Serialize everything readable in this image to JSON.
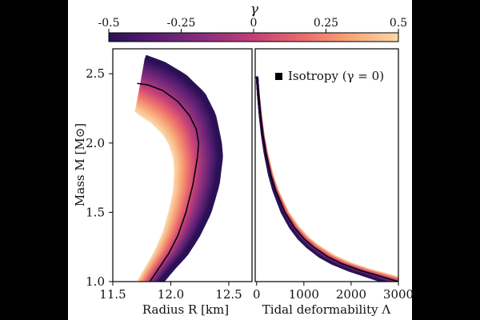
{
  "colorbar": {
    "label": "γ",
    "ticks": [
      "-0.5",
      "-0.25",
      "0",
      "0.25",
      "0.5"
    ],
    "tick_values": [
      -0.5,
      -0.25,
      0,
      0.25,
      0.5
    ],
    "gradient": [
      "#2a1156",
      "#5b1f73",
      "#8b2f7d",
      "#c23f78",
      "#ea6a6c",
      "#f7a477",
      "#fbd8a8"
    ]
  },
  "chart_data": [
    {
      "type": "area",
      "xlabel": "Radius R [km]",
      "ylabel": "Mass M [M⊙]",
      "xlim": [
        11.5,
        12.7
      ],
      "ylim": [
        1.0,
        2.68
      ],
      "xticks": [
        11.5,
        12.0,
        12.5
      ],
      "xtick_labels": [
        "11.5",
        "12.0",
        "12.5"
      ],
      "yticks": [
        1.0,
        1.5,
        2.0,
        2.5
      ],
      "ytick_labels": [
        "1.0",
        "1.5",
        "2.0",
        "2.5"
      ],
      "grid": false,
      "series": [
        {
          "line_color": "#000000",
          "x": [
            11.82,
            11.9,
            11.98,
            12.06,
            12.13,
            12.19,
            12.23,
            12.24,
            12.22,
            12.16,
            12.06,
            11.93,
            11.8,
            11.71
          ],
          "y": [
            1.0,
            1.1,
            1.2,
            1.33,
            1.5,
            1.7,
            1.9,
            2.0,
            2.1,
            2.2,
            2.3,
            2.38,
            2.42,
            2.43
          ]
        }
      ],
      "band": {
        "gamma_low_color": "#2a1156",
        "gamma_high_color": "#fbd8a8",
        "outer_gamma_low_R": [
          11.92,
          12.02,
          12.13,
          12.23,
          12.33,
          12.4,
          12.43,
          12.42,
          12.37,
          12.28,
          12.12,
          11.94,
          11.78
        ],
        "outer_gamma_low_M": [
          1.0,
          1.1,
          1.2,
          1.33,
          1.5,
          1.7,
          1.9,
          2.0,
          2.2,
          2.35,
          2.48,
          2.57,
          2.62
        ],
        "outer_gamma_high_R": [
          11.73,
          11.8,
          11.87,
          11.95,
          12.0,
          12.04,
          12.05,
          12.04,
          12.0,
          11.94,
          11.84,
          11.73,
          11.7
        ],
        "outer_gamma_high_M": [
          1.0,
          1.1,
          1.2,
          1.35,
          1.5,
          1.65,
          1.8,
          1.9,
          2.0,
          2.08,
          2.16,
          2.22,
          2.24
        ]
      }
    },
    {
      "type": "area",
      "xlabel": "Tidal deformability Λ",
      "xlim": [
        -30,
        3000
      ],
      "ylim": [
        1.0,
        2.68
      ],
      "xticks": [
        0,
        1000,
        2000,
        3000
      ],
      "xtick_labels": [
        "0",
        "1000",
        "2000",
        "3000"
      ],
      "grid": false,
      "legend": {
        "label": "Isotropy (γ = 0)",
        "placement": "top-right"
      },
      "series": [
        {
          "name": "Isotropy (γ = 0)",
          "line_color": "#000000",
          "x": [
            3000,
            2600,
            2200,
            1800,
            1500,
            1200,
            1000,
            800,
            600,
            400,
            300,
            200,
            130,
            80,
            40,
            20,
            10
          ],
          "y": [
            1.0,
            1.04,
            1.08,
            1.13,
            1.18,
            1.25,
            1.31,
            1.39,
            1.5,
            1.66,
            1.77,
            1.92,
            2.06,
            2.2,
            2.34,
            2.43,
            2.48
          ]
        }
      ]
    }
  ]
}
